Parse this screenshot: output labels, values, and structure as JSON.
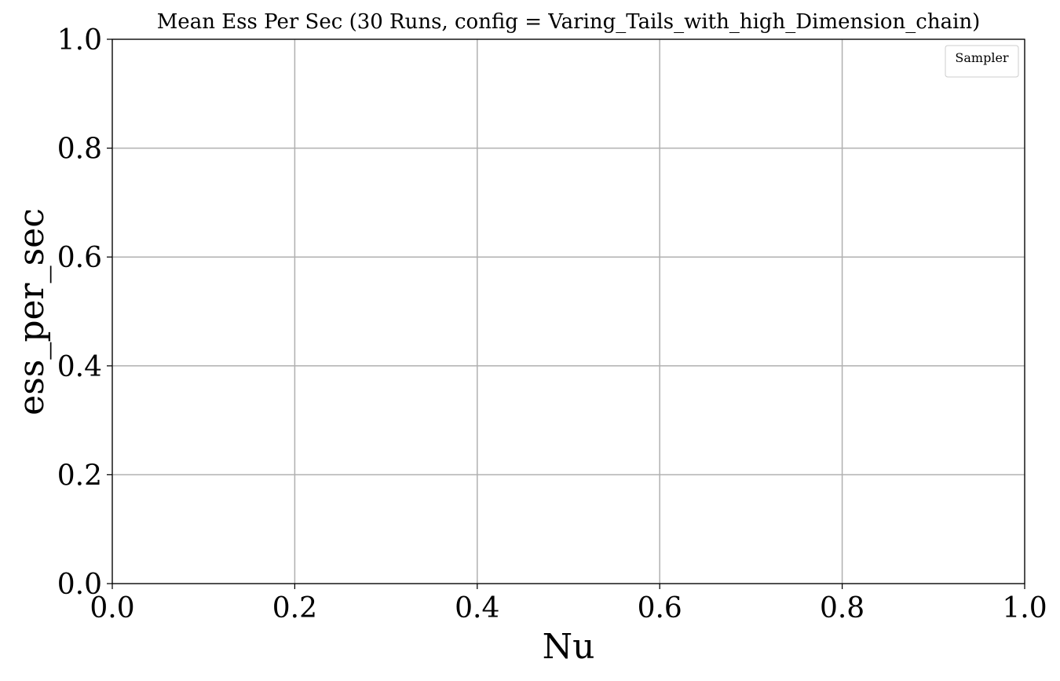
{
  "chart_data": {
    "type": "line",
    "title": "Mean Ess Per Sec (30 Runs, config = Varing_Tails_with_high_Dimension_chain)",
    "xlabel": "Nu",
    "ylabel": "ess_per_sec",
    "xlim": [
      0.0,
      1.0
    ],
    "ylim": [
      0.0,
      1.0
    ],
    "xticks": [
      "0.0",
      "0.2",
      "0.4",
      "0.6",
      "0.8",
      "1.0"
    ],
    "yticks": [
      "0.0",
      "0.2",
      "0.4",
      "0.6",
      "0.8",
      "1.0"
    ],
    "grid": true,
    "legend": {
      "title": "Sampler",
      "placement": "upper right",
      "entries": []
    },
    "series": []
  },
  "colors": {
    "grid": "#b0b0b0",
    "axis": "#000000",
    "background": "#ffffff",
    "legend_border": "#cccccc"
  }
}
